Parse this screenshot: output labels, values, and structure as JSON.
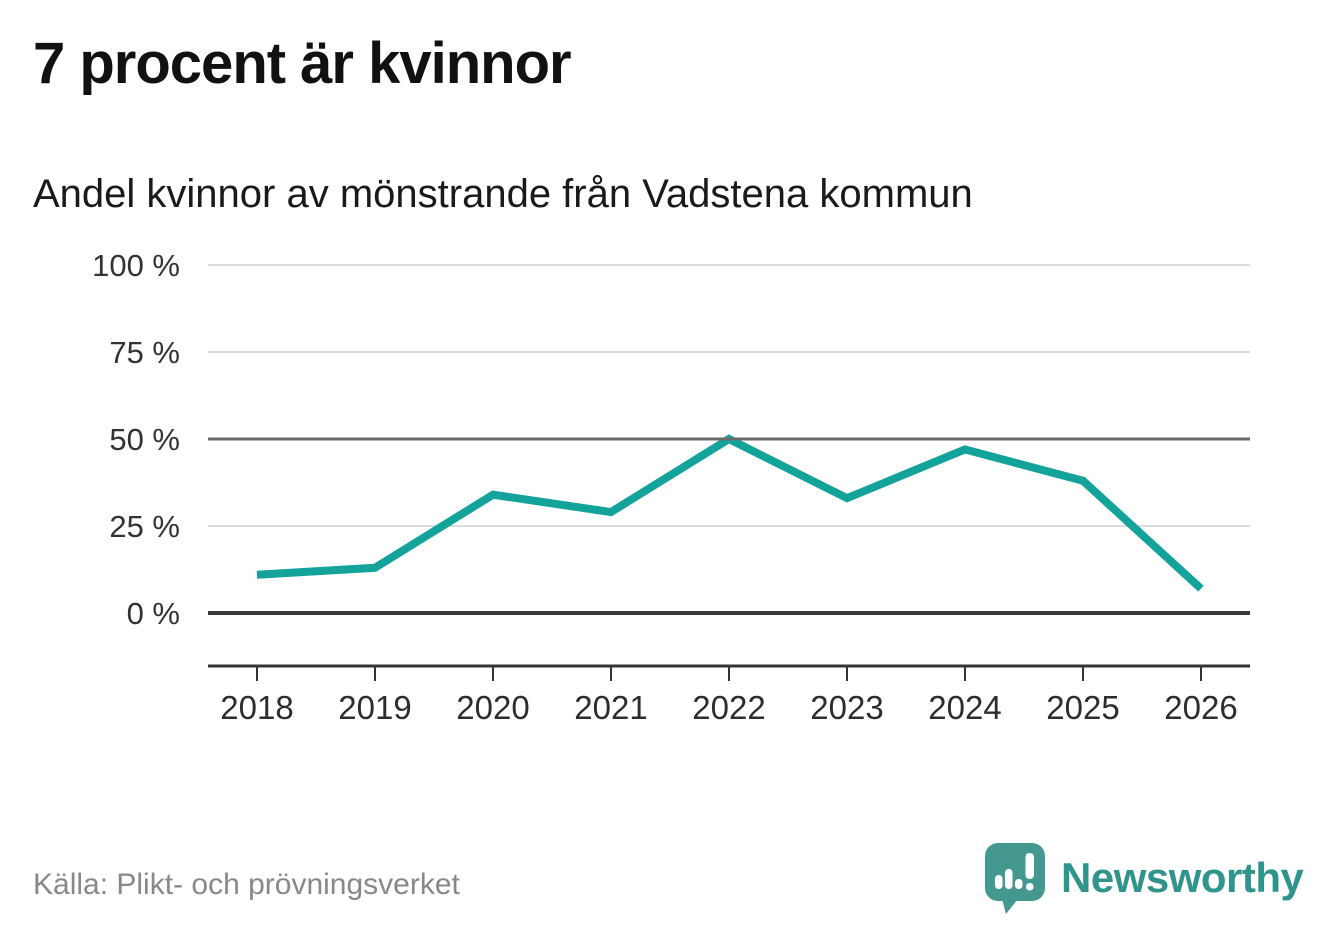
{
  "header": {
    "title": "7 procent är kvinnor",
    "subtitle": "Andel kvinnor av mönstrande från Vadstena kommun"
  },
  "chart_data": {
    "type": "line",
    "title": "Andel kvinnor av mönstrande från Vadstena kommun",
    "categories": [
      "2018",
      "2019",
      "2020",
      "2021",
      "2022",
      "2023",
      "2024",
      "2025",
      "2026"
    ],
    "series": [
      {
        "name": "Andel kvinnor av mönstrande",
        "values": [
          11,
          13,
          34,
          29,
          50,
          33,
          47,
          38,
          7
        ]
      }
    ],
    "unit": "%",
    "ylim": [
      0,
      100
    ],
    "yticks": [
      0,
      25,
      50,
      75,
      100
    ],
    "ytick_label_format": "{v} %",
    "grid": "horizontal",
    "emphasized_gridlines": [
      0,
      50
    ],
    "legend": "none",
    "line_color": "#13a39a"
  },
  "footer": {
    "source": "Källa: Plikt- och prövningsverket",
    "brand_name": "Newsworthy"
  },
  "colors": {
    "accent_teal": "#13a39a",
    "logo_teal": "#45988f",
    "wordmark_teal": "#2f948c",
    "axis_dark": "#333333",
    "gridline_light": "#dcdcdc",
    "gridline_mid": "#6b6b6b",
    "baseline_dark": "#3a3a3a",
    "text_dark": "#1a1a1a",
    "source_gray": "#888888"
  }
}
